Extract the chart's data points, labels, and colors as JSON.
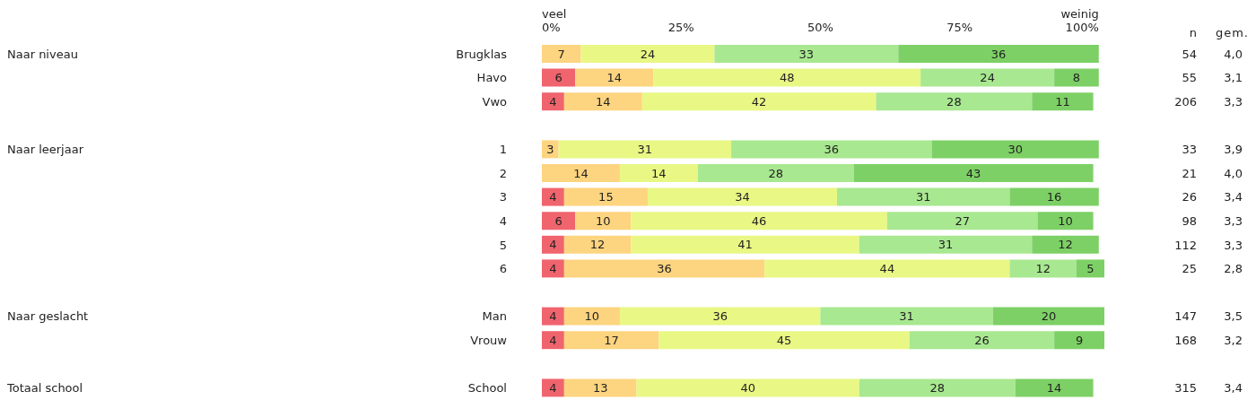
{
  "chart_data": {
    "type": "bar",
    "orientation": "horizontal",
    "stacked": true,
    "data_labels": true,
    "grid": false,
    "legend": false,
    "categories": [
      "Brugklas",
      "Havo",
      "Vwo",
      null,
      "1",
      "2",
      "3",
      "4",
      "5",
      "6",
      null,
      "Man",
      "Vrouw",
      null,
      "School"
    ],
    "series": [
      {
        "color": "#f0646e",
        "values": [
          null,
          6,
          4,
          null,
          null,
          null,
          4,
          6,
          4,
          4,
          null,
          4,
          4,
          null,
          4
        ]
      },
      {
        "color": "#fdd47f",
        "values": [
          7,
          14,
          14,
          null,
          3,
          14,
          15,
          10,
          12,
          36,
          null,
          10,
          17,
          null,
          13
        ]
      },
      {
        "color": "#e9f784",
        "values": [
          24,
          48,
          42,
          null,
          31,
          14,
          34,
          46,
          41,
          44,
          null,
          36,
          45,
          null,
          40
        ]
      },
      {
        "color": "#a8e890",
        "values": [
          33,
          24,
          28,
          null,
          36,
          28,
          31,
          27,
          31,
          12,
          null,
          31,
          26,
          null,
          28
        ]
      },
      {
        "color": "#7dd065",
        "values": [
          36,
          8,
          11,
          null,
          30,
          43,
          16,
          10,
          12,
          5,
          null,
          20,
          9,
          null,
          14
        ]
      }
    ],
    "xlim": [
      0,
      101
    ],
    "xticks": [
      {
        "value": 0,
        "label": "0%"
      },
      {
        "value": 25,
        "label": "25%"
      },
      {
        "value": 50,
        "label": "50%"
      },
      {
        "value": 75,
        "label": "75%"
      },
      {
        "value": 100,
        "label": "100%"
      }
    ],
    "annotations": [
      "veel",
      "weinig",
      "n",
      "gem.",
      "Naar niveau",
      "Naar leerjaar",
      "Naar geslacht",
      "Totaal school",
      "54",
      "55",
      "206",
      "33",
      "21",
      "26",
      "98",
      "112",
      "25",
      "147",
      "168",
      "315",
      "4,0",
      "3,1",
      "3,3",
      "3,9",
      "4,0",
      "3,4",
      "3,3",
      "3,3",
      "2,8",
      "3,5",
      "3,2",
      "3,4"
    ]
  }
}
